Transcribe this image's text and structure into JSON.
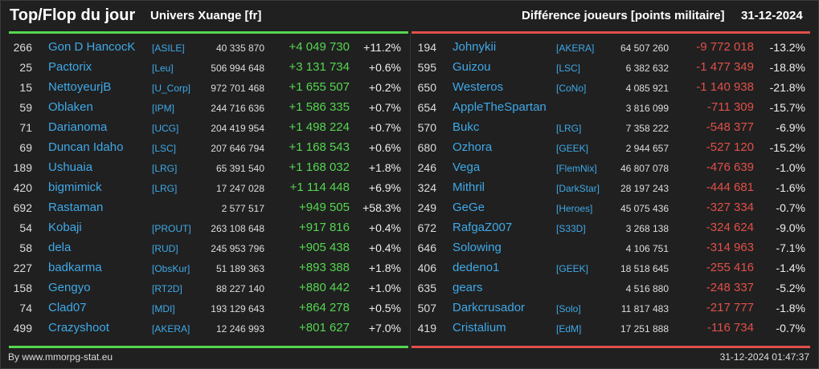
{
  "header": {
    "title": "Top/Flop du jour",
    "universe": "Univers Xuange [fr]",
    "metric": "Différence joueurs [points militaire]",
    "date": "31-12-2024"
  },
  "colors": {
    "gain": "#55d651",
    "loss": "#e0504a",
    "name": "#3fa9e8"
  },
  "top": [
    {
      "rank": "266",
      "name": "Gon D HancocK",
      "guild": "[ASILE]",
      "points": "40 335 870",
      "diff": "+4 049 730",
      "pct": "+11.2%"
    },
    {
      "rank": "25",
      "name": "Pactorix",
      "guild": "[Leu]",
      "points": "506 994 648",
      "diff": "+3 131 734",
      "pct": "+0.6%"
    },
    {
      "rank": "15",
      "name": "NettoyeurjB",
      "guild": "[U_Corp]",
      "points": "972 701 468",
      "diff": "+1 655 507",
      "pct": "+0.2%"
    },
    {
      "rank": "59",
      "name": "Oblaken",
      "guild": "[IPM]",
      "points": "244 716 636",
      "diff": "+1 586 335",
      "pct": "+0.7%"
    },
    {
      "rank": "71",
      "name": "Darianoma",
      "guild": "[UCG]",
      "points": "204 419 954",
      "diff": "+1 498 224",
      "pct": "+0.7%"
    },
    {
      "rank": "69",
      "name": "Duncan Idaho",
      "guild": "[LSC]",
      "points": "207 646 794",
      "diff": "+1 168 543",
      "pct": "+0.6%"
    },
    {
      "rank": "189",
      "name": "Ushuaia",
      "guild": "[LRG]",
      "points": "65 391 540",
      "diff": "+1 168 032",
      "pct": "+1.8%"
    },
    {
      "rank": "420",
      "name": "bigmimick",
      "guild": "[LRG]",
      "points": "17 247 028",
      "diff": "+1 114 448",
      "pct": "+6.9%"
    },
    {
      "rank": "692",
      "name": "Rastaman",
      "guild": "",
      "points": "2 577 517",
      "diff": "+949 505",
      "pct": "+58.3%"
    },
    {
      "rank": "54",
      "name": "Kobaji",
      "guild": "[PROUT]",
      "points": "263 108 648",
      "diff": "+917 816",
      "pct": "+0.4%"
    },
    {
      "rank": "58",
      "name": "dela",
      "guild": "[RUD]",
      "points": "245 953 796",
      "diff": "+905 438",
      "pct": "+0.4%"
    },
    {
      "rank": "227",
      "name": "badkarma",
      "guild": "[ObsKur]",
      "points": "51 189 363",
      "diff": "+893 388",
      "pct": "+1.8%"
    },
    {
      "rank": "158",
      "name": "Gengyo",
      "guild": "[RT2D]",
      "points": "88 227 140",
      "diff": "+880 442",
      "pct": "+1.0%"
    },
    {
      "rank": "74",
      "name": "Clad07",
      "guild": "[MDI]",
      "points": "193 129 643",
      "diff": "+864 278",
      "pct": "+0.5%"
    },
    {
      "rank": "499",
      "name": "Crazyshoot",
      "guild": "[AKERA]",
      "points": "12 246 993",
      "diff": "+801 627",
      "pct": "+7.0%"
    }
  ],
  "flop": [
    {
      "rank": "194",
      "name": "Johnykii",
      "guild": "[AKERA]",
      "points": "64 507 260",
      "diff": "-9 772 018",
      "pct": "-13.2%"
    },
    {
      "rank": "595",
      "name": "Guizou",
      "guild": "[LSC]",
      "points": "6 382 632",
      "diff": "-1 477 349",
      "pct": "-18.8%"
    },
    {
      "rank": "650",
      "name": "Westeros",
      "guild": "[CoNo]",
      "points": "4 085 921",
      "diff": "-1 140 938",
      "pct": "-21.8%"
    },
    {
      "rank": "654",
      "name": "AppleTheSpartan",
      "guild": "",
      "points": "3 816 099",
      "diff": "-711 309",
      "pct": "-15.7%"
    },
    {
      "rank": "570",
      "name": "Bukc",
      "guild": "[LRG]",
      "points": "7 358 222",
      "diff": "-548 377",
      "pct": "-6.9%"
    },
    {
      "rank": "680",
      "name": "Ozhora",
      "guild": "[GEEK]",
      "points": "2 944 657",
      "diff": "-527 120",
      "pct": "-15.2%"
    },
    {
      "rank": "246",
      "name": "Vega",
      "guild": "[FlemNix]",
      "points": "46 807 078",
      "diff": "-476 639",
      "pct": "-1.0%"
    },
    {
      "rank": "324",
      "name": "Mithril",
      "guild": "[DarkStar]",
      "points": "28 197 243",
      "diff": "-444 681",
      "pct": "-1.6%"
    },
    {
      "rank": "249",
      "name": "GeGe",
      "guild": "[Heroes]",
      "points": "45 075 436",
      "diff": "-327 334",
      "pct": "-0.7%"
    },
    {
      "rank": "672",
      "name": "RafgaZ007",
      "guild": "[S33D]",
      "points": "3 268 138",
      "diff": "-324 624",
      "pct": "-9.0%"
    },
    {
      "rank": "646",
      "name": "Solowing",
      "guild": "",
      "points": "4 106 751",
      "diff": "-314 963",
      "pct": "-7.1%"
    },
    {
      "rank": "406",
      "name": "dedeno1",
      "guild": "[GEEK]",
      "points": "18 518 645",
      "diff": "-255 416",
      "pct": "-1.4%"
    },
    {
      "rank": "635",
      "name": "gears",
      "guild": "",
      "points": "4 516 880",
      "diff": "-248 337",
      "pct": "-5.2%"
    },
    {
      "rank": "507",
      "name": "Darkcrusador",
      "guild": "[Solo]",
      "points": "11 817 483",
      "diff": "-217 777",
      "pct": "-1.8%"
    },
    {
      "rank": "419",
      "name": "Cristalium",
      "guild": "[EdM]",
      "points": "17 251 888",
      "diff": "-116 734",
      "pct": "-0.7%"
    }
  ],
  "footer": {
    "source": "By www.mmorpg-stat.eu",
    "timestamp": "31-12-2024 01:47:37"
  }
}
